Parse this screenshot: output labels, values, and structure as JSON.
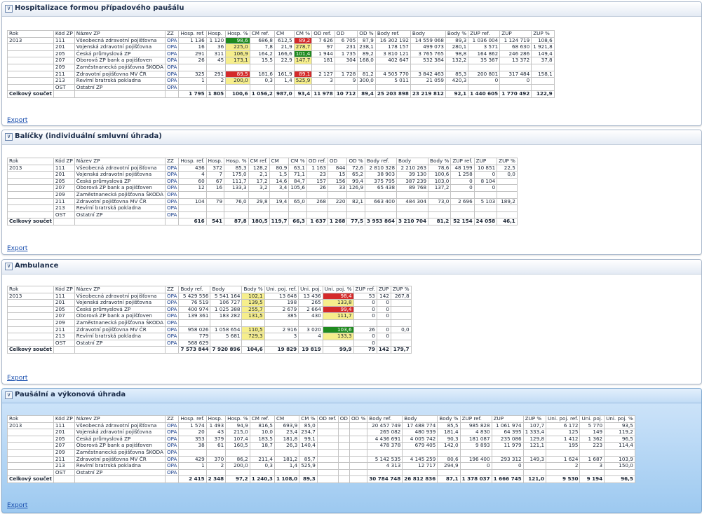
{
  "export_label": "Export",
  "colors": {
    "yellow": "#f6ee8c",
    "red": "#d42a2a",
    "green": "#1e8a1e"
  },
  "sections": [
    {
      "title": "Hospitalizace formou případového paušálu",
      "headers": [
        "Rok",
        "Kód ZP",
        "Název ZP",
        "ZZ",
        "Hosp. ref.",
        "Hosp.",
        "Hosp. %",
        "CM ref.",
        "CM",
        "CM %",
        "OD ref.",
        "OD",
        "OD %",
        "Body ref.",
        "Body",
        "Body %",
        "ZUP ref.",
        "ZUP",
        "ZUP %"
      ],
      "rows": [
        [
          "2013",
          "111",
          "Všeobecná zdravotní pojišťovna",
          "OPA",
          "1 136",
          "1 120",
          "98,6",
          "686,8",
          "612,5",
          "89,2",
          "7 626",
          "6 705",
          "87,9",
          "16 302 192",
          "14 559 068",
          "89,3",
          "1 036 004",
          "1 124 719",
          "108,6"
        ],
        [
          "",
          "201",
          "Vojenská zdravotní pojišťovna",
          "OPA",
          "16",
          "36",
          "225,0",
          "7,8",
          "21,9",
          "278,7",
          "97",
          "231",
          "238,1",
          "178 157",
          "499 073",
          "280,1",
          "3 571",
          "68 630",
          "1 921,8"
        ],
        [
          "",
          "205",
          "Česká průmyslová ZP",
          "OPA",
          "291",
          "311",
          "106,9",
          "164,2",
          "166,6",
          "101,4",
          "1 944",
          "1 735",
          "89,2",
          "3 810 121",
          "3 765 765",
          "98,8",
          "164 862",
          "246 286",
          "149,4"
        ],
        [
          "",
          "207",
          "Oborová ZP bank a pojišťoven",
          "OPA",
          "26",
          "45",
          "173,1",
          "15,5",
          "22,9",
          "147,7",
          "181",
          "304",
          "168,0",
          "402 647",
          "532 384",
          "132,2",
          "35 367",
          "13 372",
          "37,8"
        ],
        [
          "",
          "209",
          "Zaměstnanecká pojišťovna ŠKODA",
          "OPA",
          "",
          "",
          "",
          "",
          "",
          "",
          "",
          "",
          "",
          "",
          "",
          "",
          "",
          "",
          ""
        ],
        [
          "",
          "211",
          "Zdravotní pojišťovna MV ČR",
          "OPA",
          "325",
          "291",
          "89,5",
          "181,6",
          "161,9",
          "89,1",
          "2 127",
          "1 728",
          "81,2",
          "4 505 770",
          "3 842 463",
          "85,3",
          "200 801",
          "317 484",
          "158,1"
        ],
        [
          "",
          "213",
          "Revírní bratrská pokladna",
          "OPA",
          "1",
          "2",
          "200,0",
          "0,3",
          "1,4",
          "525,9",
          "3",
          "9",
          "300,0",
          "5 011",
          "21 059",
          "420,3",
          "0",
          "0",
          ""
        ],
        [
          "",
          "OST",
          "Ostatní ZP",
          "OPA",
          "",
          "",
          "",
          "",
          "",
          "",
          "",
          "",
          "",
          "",
          "",
          "",
          "",
          "",
          ""
        ]
      ],
      "highlights": [
        {
          "r": 0,
          "c": 6,
          "k": "g"
        },
        {
          "r": 0,
          "c": 9,
          "k": "r"
        },
        {
          "r": 1,
          "c": 6,
          "k": "y"
        },
        {
          "r": 1,
          "c": 9,
          "k": "y"
        },
        {
          "r": 2,
          "c": 6,
          "k": "y"
        },
        {
          "r": 2,
          "c": 9,
          "k": "g"
        },
        {
          "r": 3,
          "c": 6,
          "k": "y"
        },
        {
          "r": 3,
          "c": 9,
          "k": "y"
        },
        {
          "r": 5,
          "c": 6,
          "k": "r"
        },
        {
          "r": 5,
          "c": 9,
          "k": "r"
        },
        {
          "r": 6,
          "c": 6,
          "k": "y"
        },
        {
          "r": 6,
          "c": 9,
          "k": "y"
        }
      ],
      "total_label": "Celkový součet",
      "total": [
        "1 795",
        "1 805",
        "100,6",
        "1 056,2",
        "987,0",
        "93,4",
        "11 978",
        "10 712",
        "89,4",
        "25 203 898",
        "23 219 812",
        "92,1",
        "1 440 605",
        "1 770 492",
        "122,9"
      ]
    },
    {
      "title": "Balíčky (individuální smluvní úhrada)",
      "headers": [
        "Rok",
        "Kód ZP",
        "Název ZP",
        "ZZ",
        "Hosp. ref.",
        "Hosp.",
        "Hosp. %",
        "CM ref.",
        "CM",
        "CM %",
        "OD ref.",
        "OD",
        "OD %",
        "Body ref.",
        "Body",
        "Body %",
        "ZUP ref.",
        "ZUP",
        "ZUP %"
      ],
      "rows": [
        [
          "2013",
          "111",
          "Všeobecná zdravotní pojišťovna",
          "OPA",
          "436",
          "372",
          "85,3",
          "128,2",
          "80,9",
          "63,1",
          "1 163",
          "844",
          "72,6",
          "2 810 328",
          "2 210 263",
          "78,6",
          "48 199",
          "10 851",
          "22,5"
        ],
        [
          "",
          "201",
          "Vojenská zdravotní pojišťovna",
          "OPA",
          "4",
          "7",
          "175,0",
          "2,1",
          "1,5",
          "71,1",
          "23",
          "15",
          "65,2",
          "38 903",
          "39 130",
          "100,6",
          "1 258",
          "0",
          "0,0"
        ],
        [
          "",
          "205",
          "Česká průmyslová ZP",
          "OPA",
          "60",
          "67",
          "111,7",
          "17,2",
          "14,6",
          "84,7",
          "157",
          "156",
          "99,4",
          "375 795",
          "387 239",
          "103,0",
          "0",
          "8 104",
          ""
        ],
        [
          "",
          "207",
          "Oborová ZP bank a pojišťoven",
          "OPA",
          "12",
          "16",
          "133,3",
          "3,2",
          "3,4",
          "105,6",
          "26",
          "33",
          "126,9",
          "65 438",
          "89 768",
          "137,2",
          "0",
          "0",
          ""
        ],
        [
          "",
          "209",
          "Zaměstnanecká pojišťovna ŠKODA",
          "OPA",
          "",
          "",
          "",
          "",
          "",
          "",
          "",
          "",
          "",
          "",
          "",
          "",
          "",
          "",
          ""
        ],
        [
          "",
          "211",
          "Zdravotní pojišťovna MV ČR",
          "OPA",
          "104",
          "79",
          "76,0",
          "29,8",
          "19,4",
          "65,0",
          "268",
          "220",
          "82,1",
          "663 400",
          "484 304",
          "73,0",
          "2 696",
          "5 103",
          "189,2"
        ],
        [
          "",
          "213",
          "Revírní bratrská pokladna",
          "OPA",
          "",
          "",
          "",
          "",
          "",
          "",
          "",
          "",
          "",
          "",
          "",
          "",
          "",
          "",
          ""
        ],
        [
          "",
          "OST",
          "Ostatní ZP",
          "OPA",
          "",
          "",
          "",
          "",
          "",
          "",
          "",
          "",
          "",
          "",
          "",
          "",
          "",
          "",
          ""
        ]
      ],
      "highlights": [],
      "total_label": "Celkový součet",
      "total": [
        "616",
        "541",
        "87,8",
        "180,5",
        "119,7",
        "66,3",
        "1 637",
        "1 268",
        "77,5",
        "3 953 864",
        "3 210 704",
        "81,2",
        "52 154",
        "24 058",
        "46,1"
      ]
    },
    {
      "title": "Ambulance",
      "headers": [
        "Rok",
        "Kód ZP",
        "Název ZP",
        "ZZ",
        "Body ref.",
        "Body",
        "Body %",
        "Uni. poj. ref.",
        "Uni. poj.",
        "Uni. poj. %",
        "ZUP ref.",
        "ZUP",
        "ZUP %"
      ],
      "rows": [
        [
          "2013",
          "111",
          "Všeobecná zdravotní pojišťovna",
          "OPA",
          "5 429 556",
          "5 541 164",
          "102,1",
          "13 648",
          "13 436",
          "98,4",
          "53",
          "142",
          "267,8"
        ],
        [
          "",
          "201",
          "Vojenská zdravotní pojišťovna",
          "OPA",
          "76 519",
          "106 727",
          "139,5",
          "198",
          "265",
          "133,8",
          "0",
          "0",
          ""
        ],
        [
          "",
          "205",
          "Česká průmyslová ZP",
          "OPA",
          "400 974",
          "1 025 388",
          "255,7",
          "2 679",
          "2 664",
          "99,4",
          "0",
          "0",
          ""
        ],
        [
          "",
          "207",
          "Oborová ZP bank a pojišťoven",
          "OPA",
          "139 361",
          "183 282",
          "131,5",
          "385",
          "430",
          "111,7",
          "0",
          "0",
          ""
        ],
        [
          "",
          "209",
          "Zaměstnanecká pojišťovna ŠKODA",
          "OPA",
          "",
          "",
          "",
          "",
          "",
          "",
          "",
          "",
          ""
        ],
        [
          "",
          "211",
          "Zdravotní pojišťovna MV ČR",
          "OPA",
          "958 026",
          "1 058 654",
          "110,5",
          "2 916",
          "3 020",
          "103,6",
          "26",
          "0",
          "0,0"
        ],
        [
          "",
          "213",
          "Revírní bratrská pokladna",
          "OPA",
          "779",
          "5 681",
          "729,3",
          "3",
          "4",
          "133,3",
          "0",
          "0",
          ""
        ],
        [
          "",
          "OST",
          "Ostatní ZP",
          "OPA",
          "568 629",
          "",
          "",
          "",
          "",
          "",
          "0",
          "",
          ""
        ]
      ],
      "highlights": [
        {
          "r": 0,
          "c": 6,
          "k": "y"
        },
        {
          "r": 0,
          "c": 9,
          "k": "r"
        },
        {
          "r": 1,
          "c": 6,
          "k": "y"
        },
        {
          "r": 1,
          "c": 9,
          "k": "y"
        },
        {
          "r": 2,
          "c": 6,
          "k": "y"
        },
        {
          "r": 2,
          "c": 9,
          "k": "r"
        },
        {
          "r": 3,
          "c": 6,
          "k": "y"
        },
        {
          "r": 3,
          "c": 9,
          "k": "y"
        },
        {
          "r": 5,
          "c": 6,
          "k": "y"
        },
        {
          "r": 5,
          "c": 9,
          "k": "g"
        },
        {
          "r": 6,
          "c": 6,
          "k": "y"
        },
        {
          "r": 6,
          "c": 9,
          "k": "y"
        }
      ],
      "total_label": "Celkový součet",
      "total": [
        "7 573 844",
        "7 920 896",
        "104,6",
        "19 829",
        "19 819",
        "99,9",
        "79",
        "142",
        "179,7"
      ]
    },
    {
      "title": "Paušální a výkonová úhrada",
      "headers": [
        "Rok",
        "Kód ZP",
        "Název ZP",
        "ZZ",
        "Hosp. ref.",
        "Hosp.",
        "Hosp. %",
        "CM ref.",
        "CM",
        "CM %",
        "OD ref.",
        "OD",
        "OD %",
        "Body ref.",
        "Body",
        "Body %",
        "ZUP ref.",
        "ZUP",
        "ZUP %",
        "Uni. poj. ref.",
        "Uni. poj.",
        "Uni. poj. %"
      ],
      "rows": [
        [
          "2013",
          "111",
          "Všeobecná zdravotní pojišťovna",
          "OPA",
          "1 574",
          "1 493",
          "94,9",
          "816,5",
          "693,9",
          "85,0",
          "",
          "",
          "",
          "20 457 749",
          "17 488 774",
          "85,5",
          "985 828",
          "1 061 974",
          "107,7",
          "6 172",
          "5 770",
          "93,5"
        ],
        [
          "",
          "201",
          "Vojenská zdravotní pojišťovna",
          "OPA",
          "20",
          "43",
          "215,0",
          "10,0",
          "23,4",
          "234,7",
          "",
          "",
          "",
          "265 082",
          "480 939",
          "181,4",
          "4 830",
          "64 395",
          "1 333,4",
          "125",
          "149",
          "119,2"
        ],
        [
          "",
          "205",
          "Česká průmyslová ZP",
          "OPA",
          "353",
          "379",
          "107,4",
          "183,5",
          "181,8",
          "99,1",
          "",
          "",
          "",
          "4 436 691",
          "4 005 742",
          "90,3",
          "181 087",
          "235 086",
          "129,8",
          "1 412",
          "1 362",
          "96,5"
        ],
        [
          "",
          "207",
          "Oborová ZP bank a pojišťoven",
          "OPA",
          "38",
          "61",
          "160,5",
          "18,7",
          "26,3",
          "140,4",
          "",
          "",
          "",
          "478 378",
          "679 405",
          "142,0",
          "9 893",
          "11 979",
          "121,1",
          "195",
          "223",
          "114,4"
        ],
        [
          "",
          "209",
          "Zaměstnanecká pojišťovna ŠKODA",
          "OPA",
          "",
          "",
          "",
          "",
          "",
          "",
          "",
          "",
          "",
          "",
          "",
          "",
          "",
          "",
          "",
          "",
          "",
          ""
        ],
        [
          "",
          "211",
          "Zdravotní pojišťovna MV ČR",
          "OPA",
          "429",
          "370",
          "86,2",
          "211,4",
          "181,2",
          "85,7",
          "",
          "",
          "",
          "5 142 535",
          "4 145 259",
          "80,6",
          "196 400",
          "293 312",
          "149,3",
          "1 624",
          "1 687",
          "103,9"
        ],
        [
          "",
          "213",
          "Revírní bratrská pokladna",
          "OPA",
          "1",
          "2",
          "200,0",
          "0,3",
          "1,4",
          "525,9",
          "",
          "",
          "",
          "4 313",
          "12 717",
          "294,9",
          "0",
          "0",
          "",
          "2",
          "3",
          "150,0"
        ],
        [
          "",
          "OST",
          "Ostatní ZP",
          "OPA",
          "",
          "",
          "",
          "",
          "",
          "",
          "",
          "",
          "",
          "",
          "",
          "",
          "",
          "",
          "",
          "",
          "",
          ""
        ]
      ],
      "highlights": [],
      "total_label": "Celkový součet",
      "total": [
        "2 415",
        "2 348",
        "97,2",
        "1 240,3",
        "1 108,0",
        "89,3",
        "",
        "",
        "",
        "30 784 748",
        "26 812 836",
        "87,1",
        "1 378 037",
        "1 666 745",
        "121,0",
        "9 530",
        "9 194",
        "96,5"
      ]
    }
  ]
}
